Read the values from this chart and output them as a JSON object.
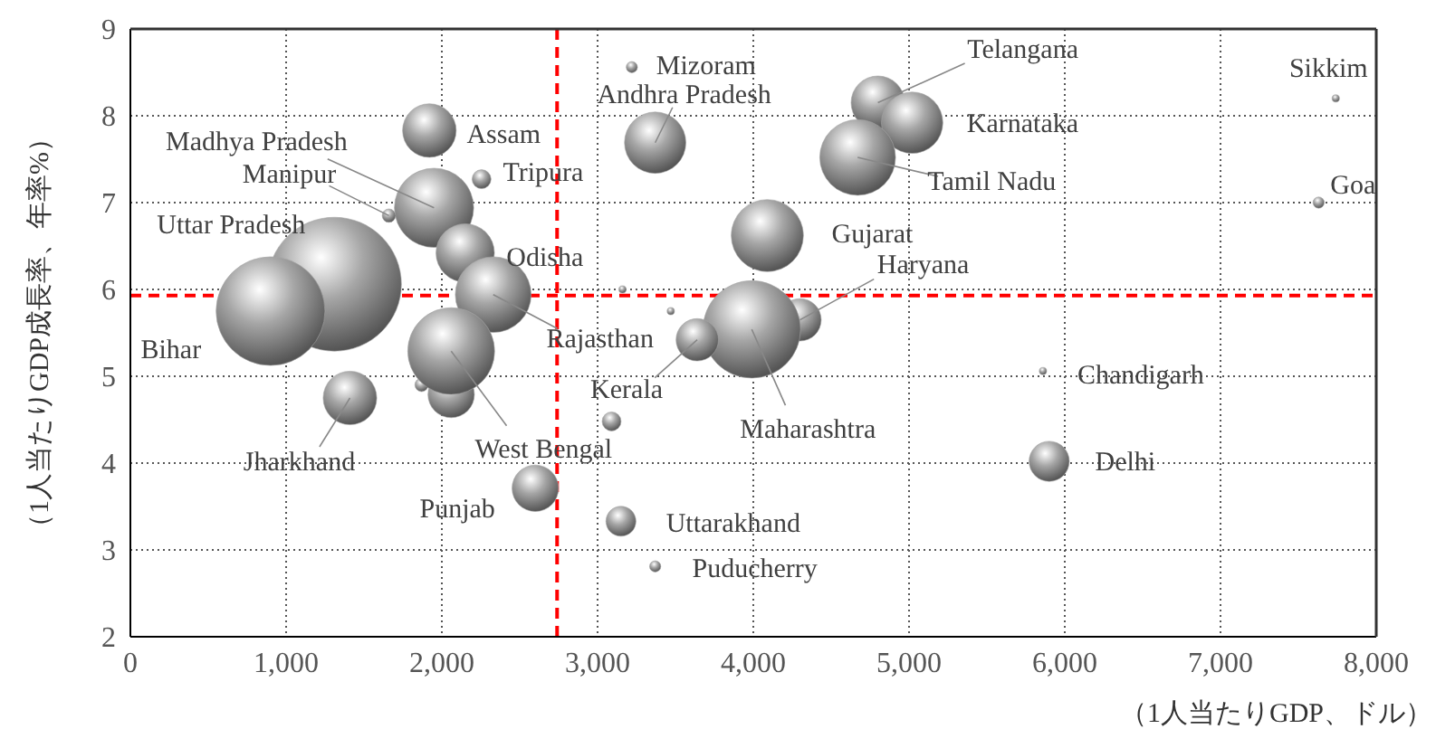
{
  "chart_data": {
    "type": "bubble",
    "xlabel": "（1人当たりGDP、ドル）",
    "ylabel": "（1人当たりGDP成長率、年率%）",
    "series": [
      {
        "color": "#a6a6a6",
        "x": [
          2060,
          1870,
          3160,
          3470,
          3090,
          1310,
          900,
          1950,
          1920,
          1660,
          2255,
          2150,
          2330,
          2060,
          1410,
          2600,
          3220,
          3370,
          4800,
          5020,
          4670,
          4090,
          4300,
          3990,
          3640,
          5860,
          5900,
          7740,
          7630,
          3150,
          3370
        ],
        "values": [
          4.79,
          4.9,
          6.0,
          5.75,
          4.48,
          6.06,
          5.75,
          6.94,
          7.83,
          6.85,
          7.27,
          6.42,
          5.94,
          5.29,
          4.75,
          3.71,
          8.56,
          7.69,
          8.15,
          7.92,
          7.52,
          6.62,
          5.65,
          5.54,
          5.42,
          5.06,
          4.02,
          8.2,
          7.0,
          3.33,
          2.81
        ],
        "sizes": [
          0.12,
          0.01,
          0.003,
          0.003,
          0.02,
          1,
          0.66,
          0.35,
          0.16,
          0.01,
          0.02,
          0.19,
          0.32,
          0.42,
          0.16,
          0.12,
          0.007,
          0.21,
          0.16,
          0.21,
          0.32,
          0.29,
          0.1,
          0.53,
          0.1,
          0.003,
          0.09,
          0.003,
          0.007,
          0.05,
          0.007
        ]
      }
    ],
    "xlim": [
      0,
      8000
    ],
    "xticks": [
      0,
      {
        "value": 1000,
        "label": "1,000"
      },
      {
        "value": 2000,
        "label": "2,000"
      },
      {
        "value": 3000,
        "label": "3,000"
      },
      {
        "value": 4000,
        "label": "4,000"
      },
      {
        "value": 5000,
        "label": "5,000"
      },
      {
        "value": 6000,
        "label": "6,000"
      },
      {
        "value": 7000,
        "label": "7,000"
      },
      {
        "value": 8000,
        "label": "8,000"
      }
    ],
    "ylim": [
      2,
      9
    ],
    "yticks": [
      2,
      3,
      4,
      5,
      6,
      7,
      8,
      9
    ],
    "grid": true,
    "ref_lines": [
      {
        "axis": "x",
        "value": 2740,
        "color": "#ff0000",
        "line_style": "dashed"
      },
      {
        "axis": "y",
        "value": 5.93,
        "color": "#ff0000",
        "line_style": "dashed"
      }
    ],
    "annotations": [
      {
        "text": "Uttar Pradesh",
        "x": 1310,
        "y": 6.06
      },
      {
        "text": "Bihar",
        "x": 900,
        "y": 5.75
      },
      {
        "text": "Madhya Pradesh",
        "x": 1950,
        "y": 6.94
      },
      {
        "text": "Assam",
        "x": 1920,
        "y": 7.83
      },
      {
        "text": "Manipur",
        "x": 1660,
        "y": 6.85
      },
      {
        "text": "Tripura",
        "x": 2255,
        "y": 7.27
      },
      {
        "text": "Odisha",
        "x": 2150,
        "y": 6.42
      },
      {
        "text": "Rajasthan",
        "x": 2330,
        "y": 5.94
      },
      {
        "text": "West Bengal",
        "x": 2060,
        "y": 5.29
      },
      {
        "text": "Jharkhand",
        "x": 1410,
        "y": 4.75
      },
      {
        "text": "Punjab",
        "x": 2600,
        "y": 3.71
      },
      {
        "text": "Mizoram",
        "x": 3220,
        "y": 8.56
      },
      {
        "text": "Andhra Pradesh",
        "x": 3370,
        "y": 7.69
      },
      {
        "text": "Telangana",
        "x": 4800,
        "y": 8.15
      },
      {
        "text": "Karnataka",
        "x": 5020,
        "y": 7.92
      },
      {
        "text": "Tamil Nadu",
        "x": 4670,
        "y": 7.52
      },
      {
        "text": "Gujarat",
        "x": 4090,
        "y": 6.62
      },
      {
        "text": "Haryana",
        "x": 4300,
        "y": 5.65
      },
      {
        "text": "Maharashtra",
        "x": 3990,
        "y": 5.54
      },
      {
        "text": "Kerala",
        "x": 3640,
        "y": 5.42
      },
      {
        "text": "Chandigarh",
        "x": 5860,
        "y": 5.06
      },
      {
        "text": "Delhi",
        "x": 5900,
        "y": 4.02
      },
      {
        "text": "Sikkim",
        "x": 7740,
        "y": 8.2
      },
      {
        "text": "Goa",
        "x": 7630,
        "y": 7.0
      },
      {
        "text": "Uttarakhand",
        "x": 3150,
        "y": 3.33
      },
      {
        "text": "Puducherry",
        "x": 3370,
        "y": 2.81
      }
    ]
  }
}
